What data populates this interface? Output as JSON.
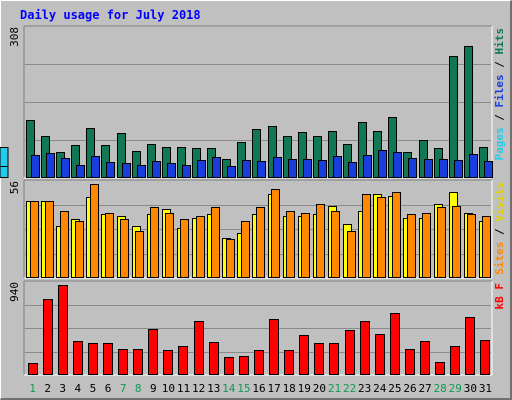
{
  "title": "Daily usage for July 2018",
  "chart_data": [
    {
      "type": "bar",
      "categories": [
        "1",
        "2",
        "3",
        "4",
        "5",
        "6",
        "7",
        "8",
        "9",
        "10",
        "11",
        "12",
        "13",
        "14",
        "15",
        "16",
        "17",
        "18",
        "19",
        "20",
        "21",
        "22",
        "23",
        "24",
        "25",
        "26",
        "27",
        "28",
        "29",
        "30",
        "31"
      ],
      "weekend_days": [
        "1",
        "7",
        "8",
        "14",
        "15",
        "21",
        "22",
        "28",
        "29"
      ],
      "ylim": [
        0,
        308
      ],
      "y_max_label": "308",
      "grid": true,
      "series": [
        {
          "name": "Hits",
          "color": "#117755",
          "values": [
            120,
            88,
            55,
            68,
            105,
            69,
            93,
            56,
            70,
            64,
            64,
            63,
            63,
            40,
            74,
            102,
            108,
            87,
            95,
            88,
            98,
            70,
            116,
            98,
            127,
            54,
            79,
            62,
            253,
            274,
            65
          ]
        },
        {
          "name": "Files",
          "color": "#1a3ddd",
          "values": [
            48,
            53,
            41,
            28,
            46,
            33,
            32,
            28,
            36,
            31,
            27,
            37,
            43,
            26,
            38,
            36,
            44,
            39,
            40,
            37,
            46,
            34,
            48,
            59,
            54,
            42,
            39,
            39,
            38,
            50,
            36
          ]
        },
        {
          "name": "Pages",
          "color": "#22ccee",
          "values": [
            38,
            33,
            22,
            19,
            37,
            26,
            25,
            22,
            27,
            24,
            20,
            25,
            25,
            17,
            24,
            29,
            30,
            27,
            29,
            30,
            32,
            27,
            29,
            45,
            37,
            35,
            28,
            35,
            58,
            64,
            25
          ]
        }
      ]
    },
    {
      "type": "bar",
      "categories": [
        "1",
        "2",
        "3",
        "4",
        "5",
        "6",
        "7",
        "8",
        "9",
        "10",
        "11",
        "12",
        "13",
        "14",
        "15",
        "16",
        "17",
        "18",
        "19",
        "20",
        "21",
        "22",
        "23",
        "24",
        "25",
        "26",
        "27",
        "28",
        "29",
        "30",
        "31"
      ],
      "ylim": [
        0,
        56
      ],
      "y_max_label": "56",
      "grid": true,
      "series": [
        {
          "name": "Visits",
          "color": "#ffff00",
          "values": [
            46,
            46,
            31,
            35,
            48,
            38,
            37,
            31,
            38,
            41,
            30,
            36,
            38,
            24,
            27,
            38,
            50,
            37,
            37,
            38,
            43,
            32,
            40,
            50,
            49,
            36,
            36,
            44,
            51,
            39,
            34
          ]
        },
        {
          "name": "Sites",
          "color": "#ff8800",
          "values": [
            46,
            46,
            40,
            34,
            56,
            39,
            35,
            28,
            42,
            39,
            35,
            37,
            42,
            23,
            34,
            42,
            53,
            40,
            39,
            44,
            40,
            28,
            50,
            48,
            51,
            38,
            39,
            42,
            43,
            38,
            37
          ]
        }
      ]
    },
    {
      "type": "bar",
      "categories": [
        "1",
        "2",
        "3",
        "4",
        "5",
        "6",
        "7",
        "8",
        "9",
        "10",
        "11",
        "12",
        "13",
        "14",
        "15",
        "16",
        "17",
        "18",
        "19",
        "20",
        "21",
        "22",
        "23",
        "24",
        "25",
        "26",
        "27",
        "28",
        "29",
        "30",
        "31"
      ],
      "ylim": [
        0,
        940
      ],
      "y_max_label": "940",
      "grid": true,
      "series": [
        {
          "name": "kB F",
          "color": "#ff0000",
          "values": [
            130,
            790,
            940,
            360,
            330,
            330,
            270,
            270,
            480,
            260,
            300,
            560,
            340,
            190,
            200,
            260,
            590,
            260,
            420,
            330,
            330,
            470,
            560,
            430,
            650,
            270,
            360,
            140,
            300,
            610,
            370
          ]
        }
      ]
    }
  ]
}
